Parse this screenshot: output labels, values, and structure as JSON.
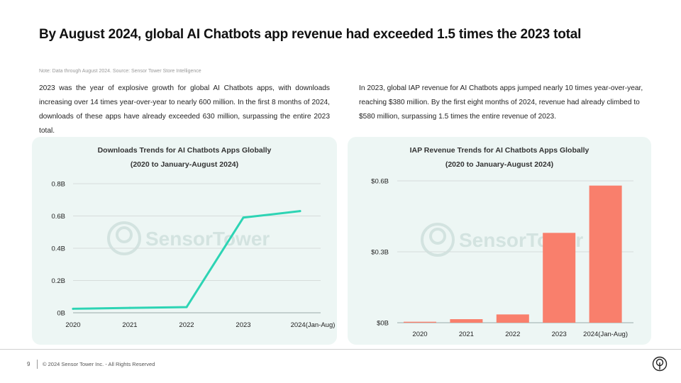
{
  "title": "By August 2024, global AI Chatbots app revenue had exceeded 1.5 times the 2023 total",
  "note": "Note: Data through August 2024. Source: Sensor Tower Store Intelligence",
  "paragraph_left": "2023 was the year of explosive growth for global AI Chatbots apps, with downloads increasing over 14 times year-over-year to nearly 600 million. In the first 8 months of 2024, downloads of these apps have already exceeded 630 million, surpassing the entire 2023 total.",
  "paragraph_right": "In 2023, global IAP revenue for AI Chatbots apps jumped nearly 10 times year-over-year, reaching $380 million. By the first eight months of 2024, revenue had already climbed to $580 million, surpassing 1.5 times the entire revenue of 2023.",
  "watermark": "SensorTower",
  "footer": {
    "page_number": "9",
    "copyright": "© 2024 Sensor Tower Inc. - All Rights Reserved"
  },
  "chart_data": [
    {
      "type": "line",
      "title": "Downloads Trends for AI Chatbots Apps Globally",
      "subtitle": "(2020 to January-August 2024)",
      "categories": [
        "2020",
        "2021",
        "2022",
        "2023",
        "2024(Jan-Aug)"
      ],
      "values": [
        0.025,
        0.03,
        0.035,
        0.59,
        0.63
      ],
      "ylim": [
        0,
        0.8
      ],
      "yticks": [
        0,
        0.2,
        0.4,
        0.6,
        0.8
      ],
      "ytick_labels": [
        "0B",
        "0.2B",
        "0.4B",
        "0.6B",
        "0.8B"
      ],
      "grid": true,
      "color": "#2dd4b4"
    },
    {
      "type": "bar",
      "title": "IAP Revenue Trends for AI Chatbots Apps Globally",
      "subtitle": "(2020 to January-August 2024)",
      "categories": [
        "2020",
        "2021",
        "2022",
        "2023",
        "2024(Jan-Aug)"
      ],
      "values": [
        0.004,
        0.015,
        0.035,
        0.38,
        0.58
      ],
      "ylim": [
        0,
        0.6
      ],
      "yticks": [
        0,
        0.3,
        0.6
      ],
      "ytick_labels": [
        "$0B",
        "$0.3B",
        "$0.6B"
      ],
      "grid": true,
      "color": "#f97f6c"
    }
  ]
}
